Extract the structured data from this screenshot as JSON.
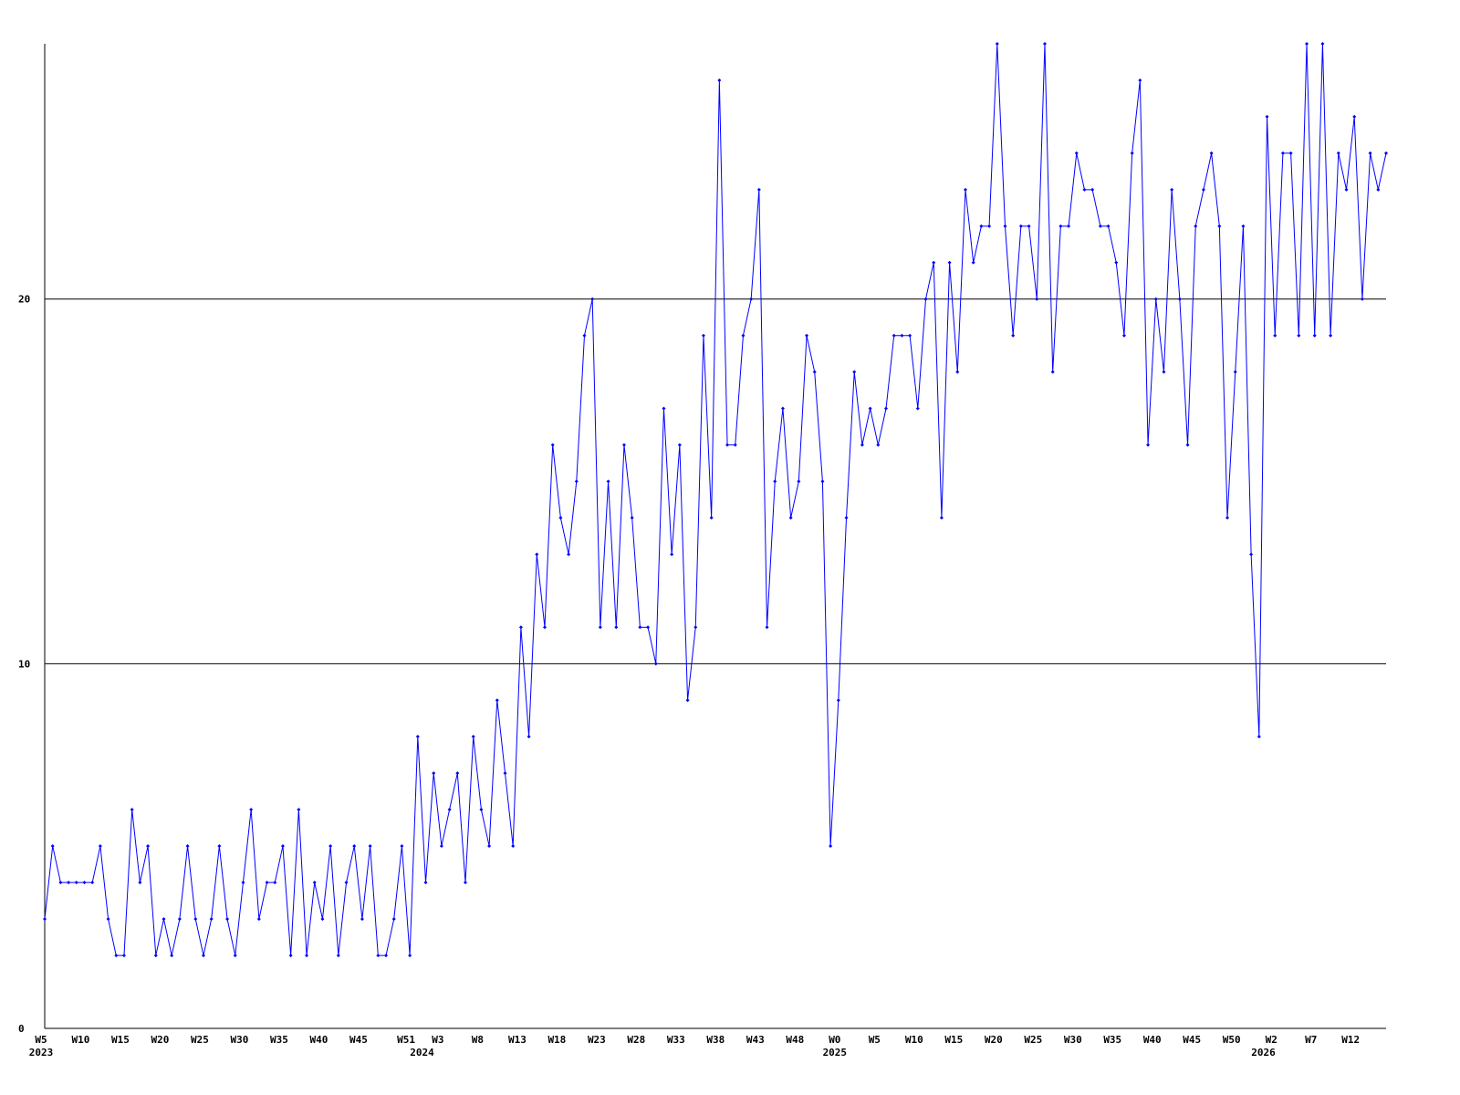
{
  "chart_data": {
    "type": "line",
    "categories": [
      "W5",
      null,
      null,
      null,
      null,
      "W10",
      null,
      null,
      null,
      null,
      "W15",
      null,
      null,
      null,
      null,
      "W20",
      null,
      null,
      null,
      null,
      "W25",
      null,
      null,
      null,
      null,
      "W30",
      null,
      null,
      null,
      null,
      "W35",
      null,
      null,
      null,
      null,
      "W40",
      null,
      null,
      null,
      null,
      "W45",
      null,
      null,
      null,
      null,
      null,
      "W51",
      null,
      null,
      null,
      "W3",
      null,
      null,
      null,
      null,
      "W8",
      null,
      null,
      null,
      null,
      "W13",
      null,
      null,
      null,
      null,
      "W18",
      null,
      null,
      null,
      null,
      "W23",
      null,
      null,
      null,
      null,
      "W28",
      null,
      null,
      null,
      null,
      "W33",
      null,
      null,
      null,
      null,
      "W38",
      null,
      null,
      null,
      null,
      "W43",
      null,
      null,
      null,
      null,
      "W48",
      null,
      null,
      null,
      null,
      "W0",
      null,
      null,
      null,
      null,
      "W5",
      null,
      null,
      null,
      null,
      "W10",
      null,
      null,
      null,
      null,
      "W15",
      null,
      null,
      null,
      null,
      "W20",
      null,
      null,
      null,
      null,
      "W25",
      null,
      null,
      null,
      null,
      "W30",
      null,
      null,
      null,
      null,
      "W35",
      null,
      null,
      null,
      null,
      "W40",
      null,
      null,
      null,
      null,
      "W45",
      null,
      null,
      null,
      null,
      "W50",
      null,
      null,
      null,
      null,
      "W2",
      null,
      null,
      null,
      null,
      "W7",
      null,
      null,
      null,
      null,
      "W12",
      null,
      null,
      null,
      null
    ],
    "years": [
      "2023",
      null,
      null,
      null,
      null,
      null,
      null,
      null,
      null,
      null,
      null,
      null,
      null,
      null,
      null,
      null,
      null,
      null,
      null,
      null,
      null,
      null,
      null,
      null,
      null,
      null,
      null,
      null,
      null,
      null,
      null,
      null,
      null,
      null,
      null,
      null,
      null,
      null,
      null,
      null,
      null,
      null,
      null,
      null,
      null,
      null,
      null,
      null,
      "2024",
      null,
      null,
      null,
      null,
      null,
      null,
      null,
      null,
      null,
      null,
      null,
      null,
      null,
      null,
      null,
      null,
      null,
      null,
      null,
      null,
      null,
      null,
      null,
      null,
      null,
      null,
      null,
      null,
      null,
      null,
      null,
      null,
      null,
      null,
      null,
      null,
      null,
      null,
      null,
      null,
      null,
      null,
      null,
      null,
      null,
      null,
      null,
      null,
      null,
      null,
      null,
      "2025",
      null,
      null,
      null,
      null,
      null,
      null,
      null,
      null,
      null,
      null,
      null,
      null,
      null,
      null,
      null,
      null,
      null,
      null,
      null,
      null,
      null,
      null,
      null,
      null,
      null,
      null,
      null,
      null,
      null,
      null,
      null,
      null,
      null,
      null,
      null,
      null,
      null,
      null,
      null,
      null,
      null,
      null,
      null,
      null,
      null,
      null,
      null,
      null,
      null,
      null,
      null,
      null,
      null,
      "2026",
      null,
      null,
      null,
      null,
      null,
      null,
      null,
      null,
      null,
      null,
      null,
      null,
      null,
      null,
      null
    ],
    "series": [
      {
        "color": "#0000ff",
        "values": [
          3,
          5,
          4,
          4,
          4,
          4,
          4,
          5,
          3,
          2,
          2,
          6,
          4,
          5,
          2,
          3,
          2,
          3,
          5,
          3,
          2,
          3,
          5,
          3,
          2,
          4,
          6,
          3,
          4,
          4,
          5,
          2,
          6,
          2,
          4,
          3,
          5,
          2,
          4,
          5,
          3,
          5,
          2,
          2,
          3,
          5,
          2,
          8,
          4,
          7,
          5,
          6,
          7,
          4,
          8,
          6,
          5,
          9,
          7,
          5,
          11,
          8,
          13,
          11,
          16,
          14,
          13,
          15,
          19,
          20,
          11,
          15,
          11,
          16,
          14,
          11,
          11,
          10,
          17,
          13,
          16,
          9,
          11,
          19,
          14,
          26,
          16,
          16,
          19,
          20,
          23,
          11,
          15,
          17,
          14,
          15,
          19,
          18,
          15,
          5,
          9,
          14,
          18,
          16,
          17,
          16,
          17,
          19,
          19,
          19,
          17,
          20,
          21,
          14,
          21,
          18,
          23,
          21,
          22,
          22,
          27,
          22,
          19,
          22,
          22,
          20,
          27,
          18,
          22,
          22,
          24,
          23,
          23,
          22,
          22,
          21,
          19,
          24,
          26,
          16,
          20,
          18,
          23,
          20,
          16,
          22,
          23,
          24,
          22,
          14,
          18,
          22,
          13,
          8,
          25,
          19,
          24,
          24,
          19,
          27,
          19,
          27,
          19,
          24,
          23,
          25,
          20,
          24,
          23,
          24
        ]
      }
    ],
    "ylim": [
      0,
      27
    ],
    "yticks": [
      0,
      10,
      20
    ],
    "grid": true
  }
}
